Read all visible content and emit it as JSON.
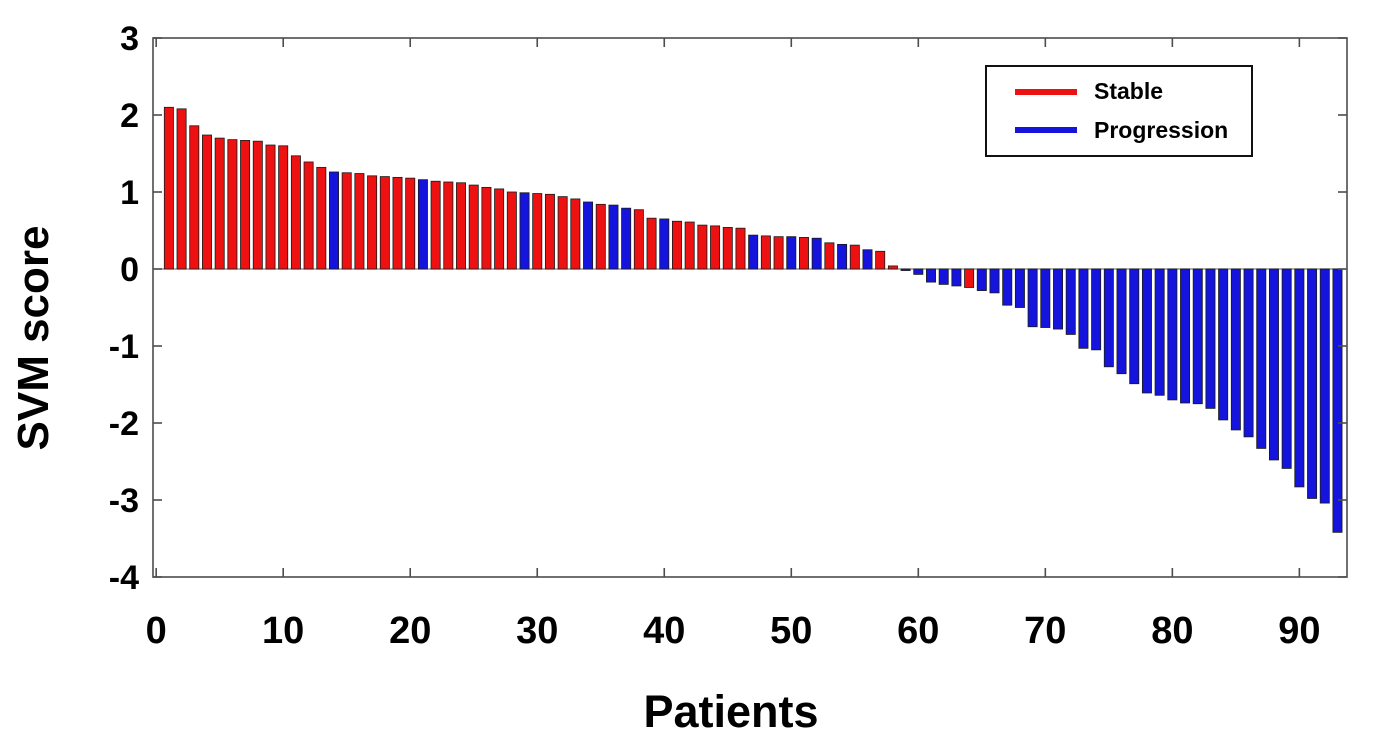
{
  "chart_data": {
    "type": "bar",
    "title": "",
    "xlabel": "Patients",
    "ylabel": "SVM score",
    "xlim": [
      0,
      94
    ],
    "ylim": [
      -4,
      3
    ],
    "x_ticks": [
      0,
      10,
      20,
      30,
      40,
      50,
      60,
      70,
      80,
      90
    ],
    "y_ticks": [
      3,
      2,
      1,
      0,
      -1,
      -2,
      -3,
      -4
    ],
    "grid": false,
    "axis_color": "#4d4d4d",
    "baseline_color": "#808080",
    "bar_edge_color": "#1a1a1a",
    "legend": {
      "position": "top-right",
      "entries": [
        {
          "label": "Stable",
          "color": "#ee1111"
        },
        {
          "label": "Progression",
          "color": "#1414dd"
        }
      ]
    },
    "points": [
      {
        "patient": 1,
        "score": 2.1,
        "class": "Stable"
      },
      {
        "patient": 2,
        "score": 2.08,
        "class": "Stable"
      },
      {
        "patient": 3,
        "score": 1.86,
        "class": "Stable"
      },
      {
        "patient": 4,
        "score": 1.74,
        "class": "Stable"
      },
      {
        "patient": 5,
        "score": 1.7,
        "class": "Stable"
      },
      {
        "patient": 6,
        "score": 1.68,
        "class": "Stable"
      },
      {
        "patient": 7,
        "score": 1.67,
        "class": "Stable"
      },
      {
        "patient": 8,
        "score": 1.66,
        "class": "Stable"
      },
      {
        "patient": 9,
        "score": 1.61,
        "class": "Stable"
      },
      {
        "patient": 10,
        "score": 1.6,
        "class": "Stable"
      },
      {
        "patient": 11,
        "score": 1.47,
        "class": "Stable"
      },
      {
        "patient": 12,
        "score": 1.39,
        "class": "Stable"
      },
      {
        "patient": 13,
        "score": 1.32,
        "class": "Stable"
      },
      {
        "patient": 14,
        "score": 1.26,
        "class": "Progression"
      },
      {
        "patient": 15,
        "score": 1.25,
        "class": "Stable"
      },
      {
        "patient": 16,
        "score": 1.24,
        "class": "Stable"
      },
      {
        "patient": 17,
        "score": 1.21,
        "class": "Stable"
      },
      {
        "patient": 18,
        "score": 1.2,
        "class": "Stable"
      },
      {
        "patient": 19,
        "score": 1.19,
        "class": "Stable"
      },
      {
        "patient": 20,
        "score": 1.18,
        "class": "Stable"
      },
      {
        "patient": 21,
        "score": 1.16,
        "class": "Progression"
      },
      {
        "patient": 22,
        "score": 1.14,
        "class": "Stable"
      },
      {
        "patient": 23,
        "score": 1.13,
        "class": "Stable"
      },
      {
        "patient": 24,
        "score": 1.12,
        "class": "Stable"
      },
      {
        "patient": 25,
        "score": 1.09,
        "class": "Stable"
      },
      {
        "patient": 26,
        "score": 1.06,
        "class": "Stable"
      },
      {
        "patient": 27,
        "score": 1.04,
        "class": "Stable"
      },
      {
        "patient": 28,
        "score": 1.0,
        "class": "Stable"
      },
      {
        "patient": 29,
        "score": 0.99,
        "class": "Progression"
      },
      {
        "patient": 30,
        "score": 0.98,
        "class": "Stable"
      },
      {
        "patient": 31,
        "score": 0.97,
        "class": "Stable"
      },
      {
        "patient": 32,
        "score": 0.94,
        "class": "Stable"
      },
      {
        "patient": 33,
        "score": 0.91,
        "class": "Stable"
      },
      {
        "patient": 34,
        "score": 0.87,
        "class": "Progression"
      },
      {
        "patient": 35,
        "score": 0.84,
        "class": "Stable"
      },
      {
        "patient": 36,
        "score": 0.83,
        "class": "Progression"
      },
      {
        "patient": 37,
        "score": 0.79,
        "class": "Progression"
      },
      {
        "patient": 38,
        "score": 0.77,
        "class": "Stable"
      },
      {
        "patient": 39,
        "score": 0.66,
        "class": "Stable"
      },
      {
        "patient": 40,
        "score": 0.65,
        "class": "Progression"
      },
      {
        "patient": 41,
        "score": 0.62,
        "class": "Stable"
      },
      {
        "patient": 42,
        "score": 0.61,
        "class": "Stable"
      },
      {
        "patient": 43,
        "score": 0.57,
        "class": "Stable"
      },
      {
        "patient": 44,
        "score": 0.56,
        "class": "Stable"
      },
      {
        "patient": 45,
        "score": 0.54,
        "class": "Stable"
      },
      {
        "patient": 46,
        "score": 0.53,
        "class": "Stable"
      },
      {
        "patient": 47,
        "score": 0.44,
        "class": "Progression"
      },
      {
        "patient": 48,
        "score": 0.43,
        "class": "Stable"
      },
      {
        "patient": 49,
        "score": 0.42,
        "class": "Stable"
      },
      {
        "patient": 50,
        "score": 0.42,
        "class": "Progression"
      },
      {
        "patient": 51,
        "score": 0.41,
        "class": "Stable"
      },
      {
        "patient": 52,
        "score": 0.4,
        "class": "Progression"
      },
      {
        "patient": 53,
        "score": 0.34,
        "class": "Stable"
      },
      {
        "patient": 54,
        "score": 0.32,
        "class": "Progression"
      },
      {
        "patient": 55,
        "score": 0.31,
        "class": "Stable"
      },
      {
        "patient": 56,
        "score": 0.25,
        "class": "Progression"
      },
      {
        "patient": 57,
        "score": 0.23,
        "class": "Stable"
      },
      {
        "patient": 58,
        "score": 0.04,
        "class": "Stable"
      },
      {
        "patient": 59,
        "score": -0.02,
        "class": "Progression"
      },
      {
        "patient": 60,
        "score": -0.07,
        "class": "Progression"
      },
      {
        "patient": 61,
        "score": -0.17,
        "class": "Progression"
      },
      {
        "patient": 62,
        "score": -0.2,
        "class": "Progression"
      },
      {
        "patient": 63,
        "score": -0.22,
        "class": "Progression"
      },
      {
        "patient": 64,
        "score": -0.24,
        "class": "Stable"
      },
      {
        "patient": 65,
        "score": -0.28,
        "class": "Progression"
      },
      {
        "patient": 66,
        "score": -0.31,
        "class": "Progression"
      },
      {
        "patient": 67,
        "score": -0.47,
        "class": "Progression"
      },
      {
        "patient": 68,
        "score": -0.5,
        "class": "Progression"
      },
      {
        "patient": 69,
        "score": -0.75,
        "class": "Progression"
      },
      {
        "patient": 70,
        "score": -0.76,
        "class": "Progression"
      },
      {
        "patient": 71,
        "score": -0.78,
        "class": "Progression"
      },
      {
        "patient": 72,
        "score": -0.85,
        "class": "Progression"
      },
      {
        "patient": 73,
        "score": -1.03,
        "class": "Progression"
      },
      {
        "patient": 74,
        "score": -1.05,
        "class": "Progression"
      },
      {
        "patient": 75,
        "score": -1.27,
        "class": "Progression"
      },
      {
        "patient": 76,
        "score": -1.36,
        "class": "Progression"
      },
      {
        "patient": 77,
        "score": -1.49,
        "class": "Progression"
      },
      {
        "patient": 78,
        "score": -1.61,
        "class": "Progression"
      },
      {
        "patient": 79,
        "score": -1.64,
        "class": "Progression"
      },
      {
        "patient": 80,
        "score": -1.7,
        "class": "Progression"
      },
      {
        "patient": 81,
        "score": -1.74,
        "class": "Progression"
      },
      {
        "patient": 82,
        "score": -1.75,
        "class": "Progression"
      },
      {
        "patient": 83,
        "score": -1.81,
        "class": "Progression"
      },
      {
        "patient": 84,
        "score": -1.96,
        "class": "Progression"
      },
      {
        "patient": 85,
        "score": -2.09,
        "class": "Progression"
      },
      {
        "patient": 86,
        "score": -2.18,
        "class": "Progression"
      },
      {
        "patient": 87,
        "score": -2.33,
        "class": "Progression"
      },
      {
        "patient": 88,
        "score": -2.48,
        "class": "Progression"
      },
      {
        "patient": 89,
        "score": -2.59,
        "class": "Progression"
      },
      {
        "patient": 90,
        "score": -2.83,
        "class": "Progression"
      },
      {
        "patient": 91,
        "score": -2.98,
        "class": "Progression"
      },
      {
        "patient": 92,
        "score": -3.04,
        "class": "Progression"
      },
      {
        "patient": 93,
        "score": -3.42,
        "class": "Progression"
      }
    ]
  }
}
